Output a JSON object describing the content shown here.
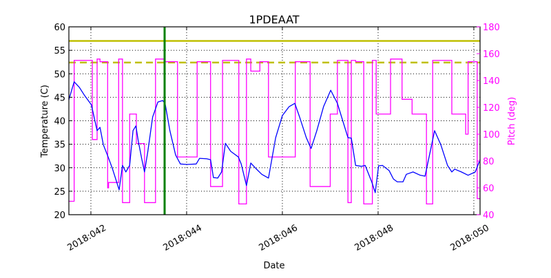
{
  "chart_data": {
    "type": "line",
    "title": "1PDEAAT",
    "xlabel": "Date",
    "ylabel": "Temperature (C)",
    "y2label": "Pitch (deg)",
    "xlim": [
      41.54,
      50.13
    ],
    "ylim": [
      20,
      60
    ],
    "y2lim": [
      40,
      180
    ],
    "grid": true,
    "x_ticks": [
      {
        "v": 42,
        "label": "2018:042"
      },
      {
        "v": 44,
        "label": "2018:044"
      },
      {
        "v": 46,
        "label": "2018:046"
      },
      {
        "v": 48,
        "label": "2018:048"
      },
      {
        "v": 50,
        "label": "2018:050"
      }
    ],
    "y_ticks": [
      20,
      25,
      30,
      35,
      40,
      45,
      50,
      55,
      60
    ],
    "y2_ticks": [
      40,
      60,
      80,
      100,
      120,
      140,
      160,
      180
    ],
    "colors": {
      "temperature": "#0000ff",
      "pitch": "#ff00ff",
      "limit": "#bfbf00",
      "marker": "#008000"
    },
    "limit_lines": [
      {
        "y": 57,
        "style": "solid"
      },
      {
        "y": 52.4,
        "style": "dashed"
      }
    ],
    "vertical_marker_x": 43.54,
    "temperature": {
      "x": [
        41.54,
        41.65,
        41.76,
        41.86,
        42.01,
        42.13,
        42.19,
        42.26,
        42.36,
        42.45,
        42.59,
        42.66,
        42.73,
        42.81,
        42.88,
        42.94,
        42.99,
        43.06,
        43.12,
        43.19,
        43.29,
        43.4,
        43.5,
        43.55,
        43.65,
        43.77,
        43.87,
        44.01,
        44.2,
        44.27,
        44.42,
        44.5,
        44.56,
        44.65,
        44.73,
        44.81,
        44.92,
        45.08,
        45.14,
        45.25,
        45.34,
        45.45,
        45.57,
        45.71,
        45.86,
        46.0,
        46.14,
        46.26,
        46.36,
        46.5,
        46.6,
        46.72,
        46.86,
        47.01,
        47.15,
        47.37,
        47.44,
        47.53,
        47.65,
        47.73,
        47.87,
        47.94,
        48.01,
        48.09,
        48.23,
        48.32,
        48.4,
        48.52,
        48.59,
        48.73,
        48.88,
        48.98,
        49.09,
        49.18,
        49.31,
        49.45,
        49.54,
        49.6,
        49.74,
        49.88,
        50.03,
        50.13
      ],
      "y": [
        44.5,
        48.3,
        47.1,
        45.5,
        43.4,
        37.9,
        38.6,
        34.9,
        32.3,
        29.8,
        25.3,
        30.5,
        29.1,
        30.5,
        37.9,
        38.9,
        35.7,
        32.0,
        29.1,
        33.5,
        40.8,
        44.0,
        44.3,
        43.7,
        37.9,
        32.7,
        30.8,
        30.7,
        30.8,
        32.0,
        31.9,
        31.7,
        27.9,
        27.8,
        29.1,
        35.2,
        33.5,
        32.3,
        30.8,
        26.2,
        31.0,
        29.8,
        28.6,
        27.8,
        36.4,
        41.1,
        43.0,
        43.7,
        40.8,
        36.4,
        34.1,
        37.9,
        43.0,
        46.5,
        43.7,
        36.4,
        36.3,
        30.5,
        30.3,
        30.5,
        26.9,
        24.7,
        30.4,
        30.5,
        29.4,
        27.6,
        27.0,
        27.0,
        28.6,
        29.1,
        28.4,
        28.2,
        33.5,
        37.9,
        34.9,
        30.5,
        29.1,
        29.7,
        29.1,
        28.4,
        29.1,
        31.7
      ]
    },
    "pitch": {
      "step_x": [
        41.54,
        41.65,
        42.03,
        42.13,
        42.19,
        42.35,
        42.37,
        42.58,
        42.66,
        42.81,
        42.95,
        43.12,
        43.35,
        43.55,
        43.81,
        44.22,
        44.5,
        44.75,
        45.09,
        45.25,
        45.34,
        45.53,
        45.71,
        46.27,
        46.58,
        47.0,
        47.15,
        47.37,
        47.44,
        47.53,
        47.7,
        47.88,
        47.96,
        48.26,
        48.5,
        48.71,
        49.01,
        49.14,
        49.54,
        49.83,
        49.88,
        50.07,
        50.13
      ],
      "y": [
        50,
        155,
        96,
        156,
        154,
        60,
        64,
        156,
        49,
        115,
        93,
        49,
        156,
        154,
        83,
        154,
        61,
        155,
        48,
        156,
        147,
        154,
        83,
        154,
        61,
        115,
        155,
        49,
        155,
        154,
        48,
        155,
        115,
        156,
        126,
        115,
        48,
        155,
        115,
        100,
        154,
        52,
        52
      ]
    }
  }
}
